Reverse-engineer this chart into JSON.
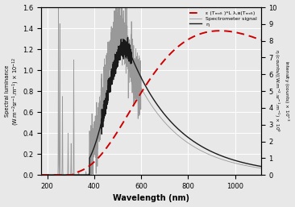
{
  "xlabel": "Wavelength (nm)",
  "ylabel_left": "Spectral luminance (W.m$^{-2}$sr$^{-1}$.m$^{-1}$) × 10$^{-12}$",
  "ylabel_right_top": "Intensity (counts) × 10$^{-3}$",
  "ylabel_right_bottom": "η (counts/((W.m$^{-2}$.sr$^{-1}$.m$^{-1}$) × 10$^{9}$",
  "xlim": [
    175,
    1110
  ],
  "ylim_left": [
    0,
    1.6
  ],
  "ylim_right": [
    0,
    10
  ],
  "yticks_left": [
    0,
    0.2,
    0.4,
    0.6,
    0.8,
    1.0,
    1.2,
    1.4,
    1.6
  ],
  "yticks_right": [
    0,
    1,
    2,
    3,
    4,
    5,
    6,
    7,
    8,
    9,
    10
  ],
  "xticks": [
    200,
    400,
    600,
    800,
    1000
  ],
  "legend_labels": [
    "ε (Tₘₑₗₜ )*L λ,ʙ(Tₘₑₗₜ)",
    "Spectrometer signal",
    "η"
  ],
  "legend_colors": [
    "#cc0000",
    "#888888",
    "#111111"
  ],
  "legend_linestyles": [
    "--",
    "-",
    "-"
  ],
  "bg_color": "#e8e8e8",
  "grid_color": "#ffffff"
}
